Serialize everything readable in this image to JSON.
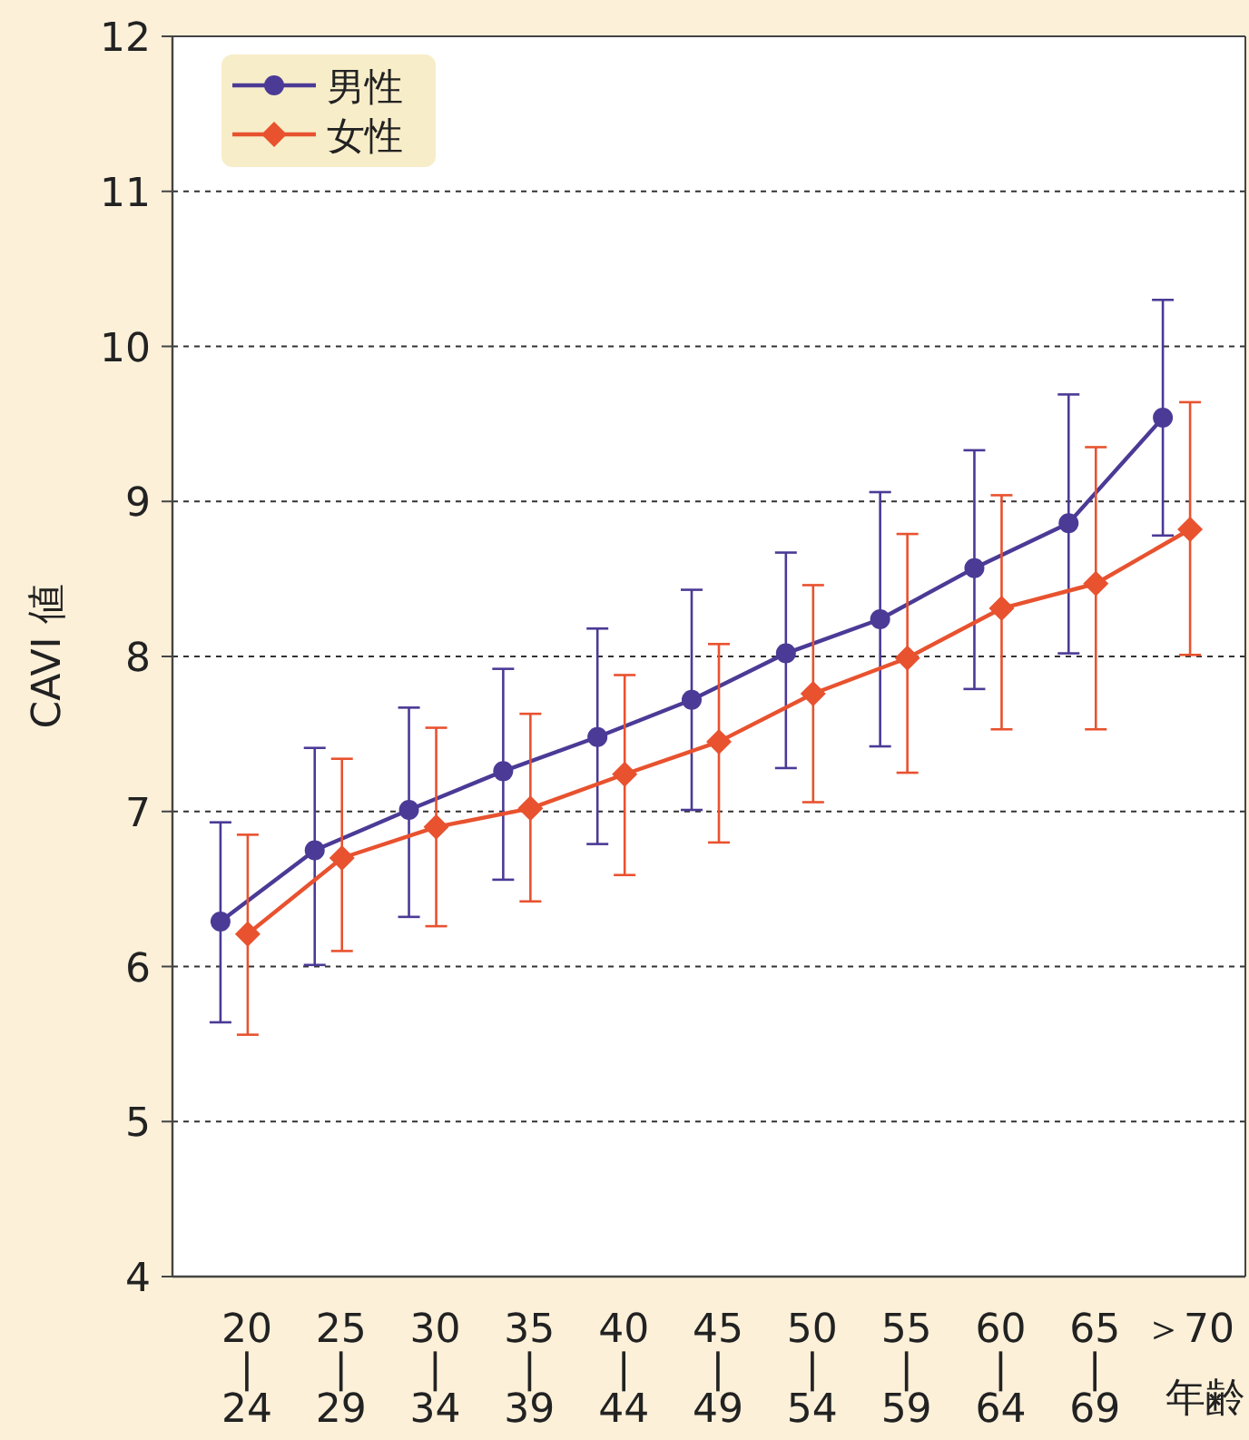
{
  "chart_data": {
    "type": "line",
    "ylabel": "CAVI 値",
    "xlabel": "年齢",
    "categories": [
      "20\n|\n24",
      "25\n|\n29",
      "30\n|\n34",
      "35\n|\n39",
      "40\n|\n44",
      "45\n|\n49",
      "50\n|\n54",
      "55\n|\n59",
      "60\n|\n64",
      "65\n|\n69",
      "＞70"
    ],
    "ylim": [
      4,
      12
    ],
    "yticks": [
      4,
      5,
      6,
      7,
      8,
      9,
      10,
      11,
      12
    ],
    "grid": "y",
    "legend": "top left",
    "series": [
      {
        "name": "男性",
        "color": "#4b3a96",
        "marker": "circle",
        "values": [
          6.29,
          6.75,
          7.01,
          7.26,
          7.48,
          7.72,
          8.02,
          8.24,
          8.57,
          8.86,
          9.54
        ],
        "errors": [
          [
            5.64,
            6.93
          ],
          [
            6.01,
            7.41
          ],
          [
            6.32,
            7.67
          ],
          [
            6.56,
            7.92
          ],
          [
            6.79,
            8.18
          ],
          [
            7.01,
            8.43
          ],
          [
            7.28,
            8.67
          ],
          [
            7.42,
            9.06
          ],
          [
            7.79,
            9.33
          ],
          [
            8.02,
            9.69
          ],
          [
            8.78,
            10.3
          ]
        ]
      },
      {
        "name": "女性",
        "color": "#e8522f",
        "marker": "diamond",
        "values": [
          6.21,
          6.7,
          6.9,
          7.02,
          7.24,
          7.45,
          7.76,
          7.99,
          8.31,
          8.47,
          8.82
        ],
        "errors": [
          [
            5.56,
            6.85
          ],
          [
            6.1,
            7.34
          ],
          [
            6.26,
            7.54
          ],
          [
            6.42,
            7.63
          ],
          [
            6.59,
            7.88
          ],
          [
            6.8,
            8.08
          ],
          [
            7.06,
            8.46
          ],
          [
            7.25,
            8.79
          ],
          [
            7.53,
            9.04
          ],
          [
            7.53,
            9.35
          ],
          [
            8.01,
            9.64
          ]
        ]
      }
    ]
  }
}
